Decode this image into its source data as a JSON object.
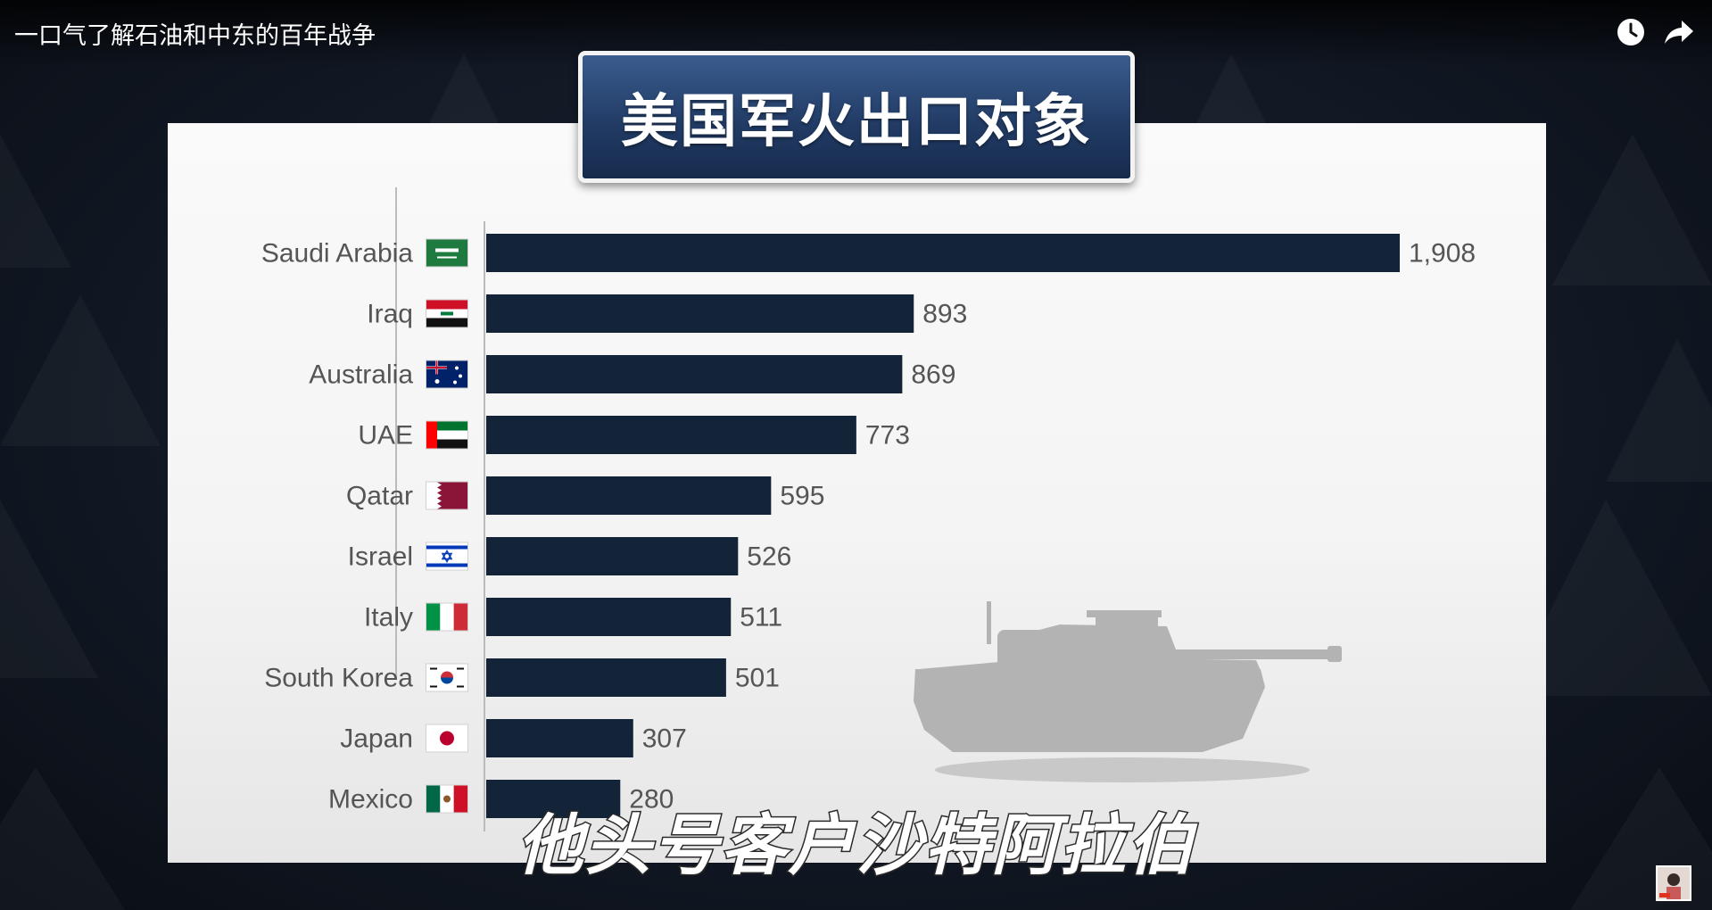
{
  "video": {
    "title": "一口气了解石油和中东的百年战争"
  },
  "top_controls": {
    "watch_later_icon": "clock-icon",
    "share_icon": "share-arrow-icon"
  },
  "slide": {
    "title": "美国军火出口对象",
    "subtitle": "他头号客户沙特阿拉伯",
    "decoration_icon": "tank-silhouette-icon"
  },
  "colors": {
    "bar": "#132338",
    "title_box": "#223c66",
    "label": "#555555",
    "panel": "#f4f4f4"
  },
  "chart_data": {
    "type": "bar",
    "orientation": "horizontal",
    "title": "美国军火出口对象",
    "categories": [
      "Saudi Arabia",
      "Iraq",
      "Australia",
      "UAE",
      "Qatar",
      "Israel",
      "Italy",
      "South Korea",
      "Japan",
      "Mexico"
    ],
    "values": [
      1908,
      893,
      869,
      773,
      595,
      526,
      511,
      501,
      307,
      280
    ],
    "value_labels": [
      "1,908",
      "893",
      "869",
      "773",
      "595",
      "526",
      "511",
      "501",
      "307",
      "280"
    ],
    "flags": [
      "saudi-arabia-flag-icon",
      "iraq-flag-icon",
      "australia-flag-icon",
      "uae-flag-icon",
      "qatar-flag-icon",
      "israel-flag-icon",
      "italy-flag-icon",
      "south-korea-flag-icon",
      "japan-flag-icon",
      "mexico-flag-icon"
    ],
    "xlim": [
      0,
      1908
    ],
    "grid": false,
    "legend": "none"
  },
  "channel": {
    "avatar_icon": "channel-avatar-icon"
  }
}
